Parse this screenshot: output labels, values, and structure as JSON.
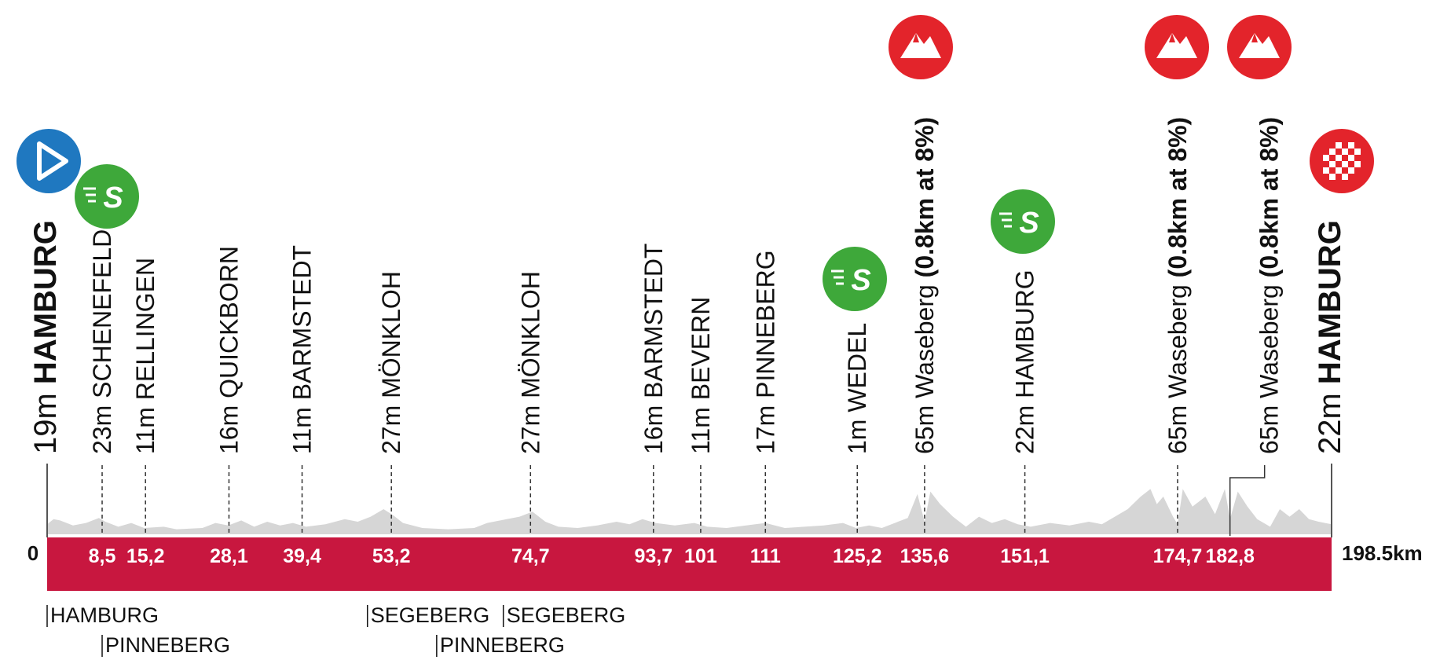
{
  "chart_data": {
    "type": "area",
    "xlabel": "",
    "ylabel": "",
    "xlim": [
      0,
      198.5
    ],
    "start_label": "0",
    "end_label": "198.5km",
    "colors": {
      "bar": "#c8173f",
      "terrain": "#d6d6d6",
      "start_icon": "#1f78c0",
      "sprint_icon": "#3ea83a",
      "climb_icon": "#e3242b",
      "finish_icon": "#e3242b",
      "text": "#111111"
    },
    "waypoints": [
      {
        "km": 0,
        "km_label": "",
        "elev": "19m",
        "name": "HAMBURG",
        "bold": true,
        "icon": "start-icon"
      },
      {
        "km": 8.5,
        "km_label": "8,5",
        "elev": "23m",
        "name": "SCHENEFELD",
        "bold": false,
        "icon": "sprint-icon"
      },
      {
        "km": 15.2,
        "km_label": "15,2",
        "elev": "11m",
        "name": "RELLINGEN",
        "bold": false,
        "icon": ""
      },
      {
        "km": 28.1,
        "km_label": "28,1",
        "elev": "16m",
        "name": "QUICKBORN",
        "bold": false,
        "icon": ""
      },
      {
        "km": 39.4,
        "km_label": "39,4",
        "elev": "11m",
        "name": "BARMSTEDT",
        "bold": false,
        "icon": ""
      },
      {
        "km": 53.2,
        "km_label": "53,2",
        "elev": "27m",
        "name": "MÖNKLOH",
        "bold": false,
        "icon": ""
      },
      {
        "km": 74.7,
        "km_label": "74,7",
        "elev": "27m",
        "name": "MÖNKLOH",
        "bold": false,
        "icon": ""
      },
      {
        "km": 93.7,
        "km_label": "93,7",
        "elev": "16m",
        "name": "BARMSTEDT",
        "bold": false,
        "icon": ""
      },
      {
        "km": 101,
        "km_label": "101",
        "elev": "11m",
        "name": "BEVERN",
        "bold": false,
        "icon": ""
      },
      {
        "km": 111,
        "km_label": "111",
        "elev": "17m",
        "name": "PINNEBERG",
        "bold": false,
        "icon": ""
      },
      {
        "km": 125.2,
        "km_label": "125,2",
        "elev": "1m",
        "name": "WEDEL",
        "bold": false,
        "icon": "sprint-icon"
      },
      {
        "km": 135.6,
        "km_label": "135,6",
        "elev": "65m",
        "name": "Waseberg",
        "bold": false,
        "note": "(0.8km at 8%)",
        "icon": "climb-icon"
      },
      {
        "km": 151.1,
        "km_label": "151,1",
        "elev": "22m",
        "name": "HAMBURG",
        "bold": false,
        "icon": "sprint-icon"
      },
      {
        "km": 174.7,
        "km_label": "174,7",
        "elev": "65m",
        "name": "Waseberg",
        "bold": false,
        "note": "(0.8km at 8%)",
        "icon": "climb-icon"
      },
      {
        "km": 182.8,
        "km_label": "182,8",
        "elev": "65m",
        "name": "Waseberg",
        "bold": false,
        "note": "(0.8km at 8%)",
        "icon": "climb-icon",
        "offset": true
      },
      {
        "km": 198.5,
        "km_label": "",
        "elev": "22m",
        "name": "HAMBURG",
        "bold": true,
        "icon": "finish-icon"
      }
    ],
    "districts": [
      {
        "km": 0,
        "name": "HAMBURG",
        "row": 0
      },
      {
        "km": 8.5,
        "name": "PINNEBERG",
        "row": 1
      },
      {
        "km": 49.5,
        "name": "SEGEBERG",
        "row": 0
      },
      {
        "km": 70.5,
        "name": "SEGEBERG",
        "row": 0
      },
      {
        "km": 60.2,
        "name": "PINNEBERG",
        "row": 1
      }
    ],
    "profile": [
      [
        0,
        8
      ],
      [
        1,
        12
      ],
      [
        2,
        11
      ],
      [
        4,
        7
      ],
      [
        6,
        9
      ],
      [
        8,
        13
      ],
      [
        9,
        10
      ],
      [
        11,
        6
      ],
      [
        13,
        9
      ],
      [
        15,
        5
      ],
      [
        18,
        6
      ],
      [
        20,
        4
      ],
      [
        24,
        5
      ],
      [
        26,
        9
      ],
      [
        28,
        7
      ],
      [
        30,
        11
      ],
      [
        32,
        6
      ],
      [
        34,
        10
      ],
      [
        36,
        7
      ],
      [
        38,
        9
      ],
      [
        40,
        6
      ],
      [
        43,
        8
      ],
      [
        46,
        12
      ],
      [
        48,
        10
      ],
      [
        50,
        14
      ],
      [
        52,
        20
      ],
      [
        53.5,
        15
      ],
      [
        55,
        9
      ],
      [
        58,
        5
      ],
      [
        62,
        4
      ],
      [
        66,
        5
      ],
      [
        68,
        9
      ],
      [
        71,
        12
      ],
      [
        73,
        14
      ],
      [
        75,
        18
      ],
      [
        77,
        10
      ],
      [
        79,
        6
      ],
      [
        82,
        5
      ],
      [
        85,
        7
      ],
      [
        88,
        10
      ],
      [
        90,
        8
      ],
      [
        92,
        12
      ],
      [
        94,
        9
      ],
      [
        97,
        7
      ],
      [
        100,
        9
      ],
      [
        102,
        6
      ],
      [
        105,
        5
      ],
      [
        108,
        7
      ],
      [
        111,
        9
      ],
      [
        114,
        5
      ],
      [
        117,
        6
      ],
      [
        120,
        7
      ],
      [
        123,
        9
      ],
      [
        125,
        5
      ],
      [
        127,
        7
      ],
      [
        129,
        5
      ],
      [
        131,
        9
      ],
      [
        133,
        13
      ],
      [
        134.5,
        32
      ],
      [
        135.6,
        10
      ],
      [
        136.5,
        34
      ],
      [
        138,
        24
      ],
      [
        140,
        14
      ],
      [
        142,
        6
      ],
      [
        144,
        14
      ],
      [
        146,
        9
      ],
      [
        148,
        12
      ],
      [
        150,
        8
      ],
      [
        152,
        6
      ],
      [
        155,
        9
      ],
      [
        158,
        7
      ],
      [
        161,
        10
      ],
      [
        163,
        8
      ],
      [
        165,
        14
      ],
      [
        167,
        20
      ],
      [
        169,
        30
      ],
      [
        170.5,
        36
      ],
      [
        171.5,
        24
      ],
      [
        172.5,
        30
      ],
      [
        174,
        14
      ],
      [
        174.7,
        8
      ],
      [
        175.5,
        36
      ],
      [
        177,
        22
      ],
      [
        179,
        30
      ],
      [
        180.5,
        16
      ],
      [
        182,
        36
      ],
      [
        182.8,
        12
      ],
      [
        184,
        34
      ],
      [
        185.5,
        22
      ],
      [
        187,
        12
      ],
      [
        189,
        6
      ],
      [
        190.5,
        20
      ],
      [
        192,
        14
      ],
      [
        193.5,
        20
      ],
      [
        195,
        12
      ],
      [
        196.5,
        10
      ],
      [
        198.5,
        8
      ]
    ]
  }
}
